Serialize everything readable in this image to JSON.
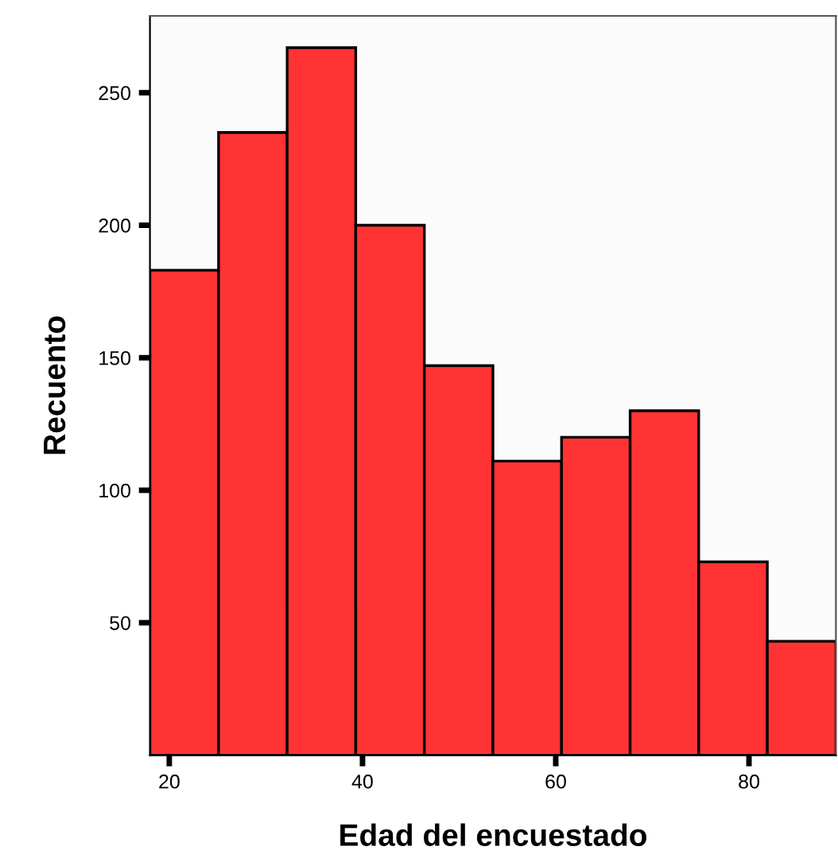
{
  "chart_data": {
    "type": "histogram",
    "xlabel": "Edad del encuestado",
    "ylabel": "Recuento",
    "bins": [
      18,
      25.1,
      32.2,
      39.3,
      46.4,
      53.5,
      60.6,
      67.7,
      74.8,
      81.9,
      89
    ],
    "values": [
      183,
      235,
      267,
      200,
      147,
      111,
      120,
      130,
      73,
      43
    ],
    "color": "#ff3333",
    "xlim": [
      18,
      89
    ],
    "xticks": [
      20,
      40,
      60,
      80
    ],
    "ylim": [
      0,
      279
    ],
    "yticks": [
      50,
      100,
      150,
      200,
      250
    ],
    "grid": false,
    "legend": false
  }
}
